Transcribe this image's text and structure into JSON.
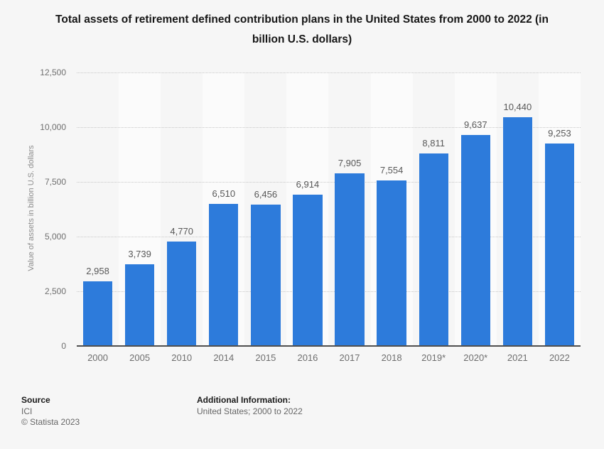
{
  "chart_data": {
    "type": "bar",
    "title": "Total assets of retirement defined contribution plans in the United States from 2000 to 2022 (in billion U.S. dollars)",
    "categories": [
      "2000",
      "2005",
      "2010",
      "2014",
      "2015",
      "2016",
      "2017",
      "2018",
      "2019*",
      "2020*",
      "2021",
      "2022"
    ],
    "values": [
      2958,
      3739,
      4770,
      6510,
      6456,
      6914,
      7905,
      7554,
      8811,
      9637,
      10440,
      9253
    ],
    "value_labels": [
      "2,958",
      "3,739",
      "4,770",
      "6,510",
      "6,456",
      "6,914",
      "7,905",
      "7,554",
      "8,811",
      "9,637",
      "10,440",
      "9,253"
    ],
    "xlabel": "",
    "ylabel": "Value of assets in billion U.S. dollars",
    "ylim": [
      0,
      12500
    ],
    "yticks": [
      0,
      2500,
      5000,
      7500,
      10000,
      12500
    ],
    "ytick_labels": [
      "0",
      "2,500",
      "5,000",
      "7,500",
      "10,000",
      "12,500"
    ],
    "grid": "horizontal-dotted",
    "legend": "none",
    "bar_color": "#2d7bdb",
    "band_light_color": "#fbfbfb",
    "background_color": "#f6f6f6"
  },
  "footer": {
    "source_label": "Source",
    "source_value": "ICI",
    "copyright": "© Statista 2023",
    "additional_label": "Additional Information:",
    "additional_value": "United States; 2000 to 2022"
  }
}
